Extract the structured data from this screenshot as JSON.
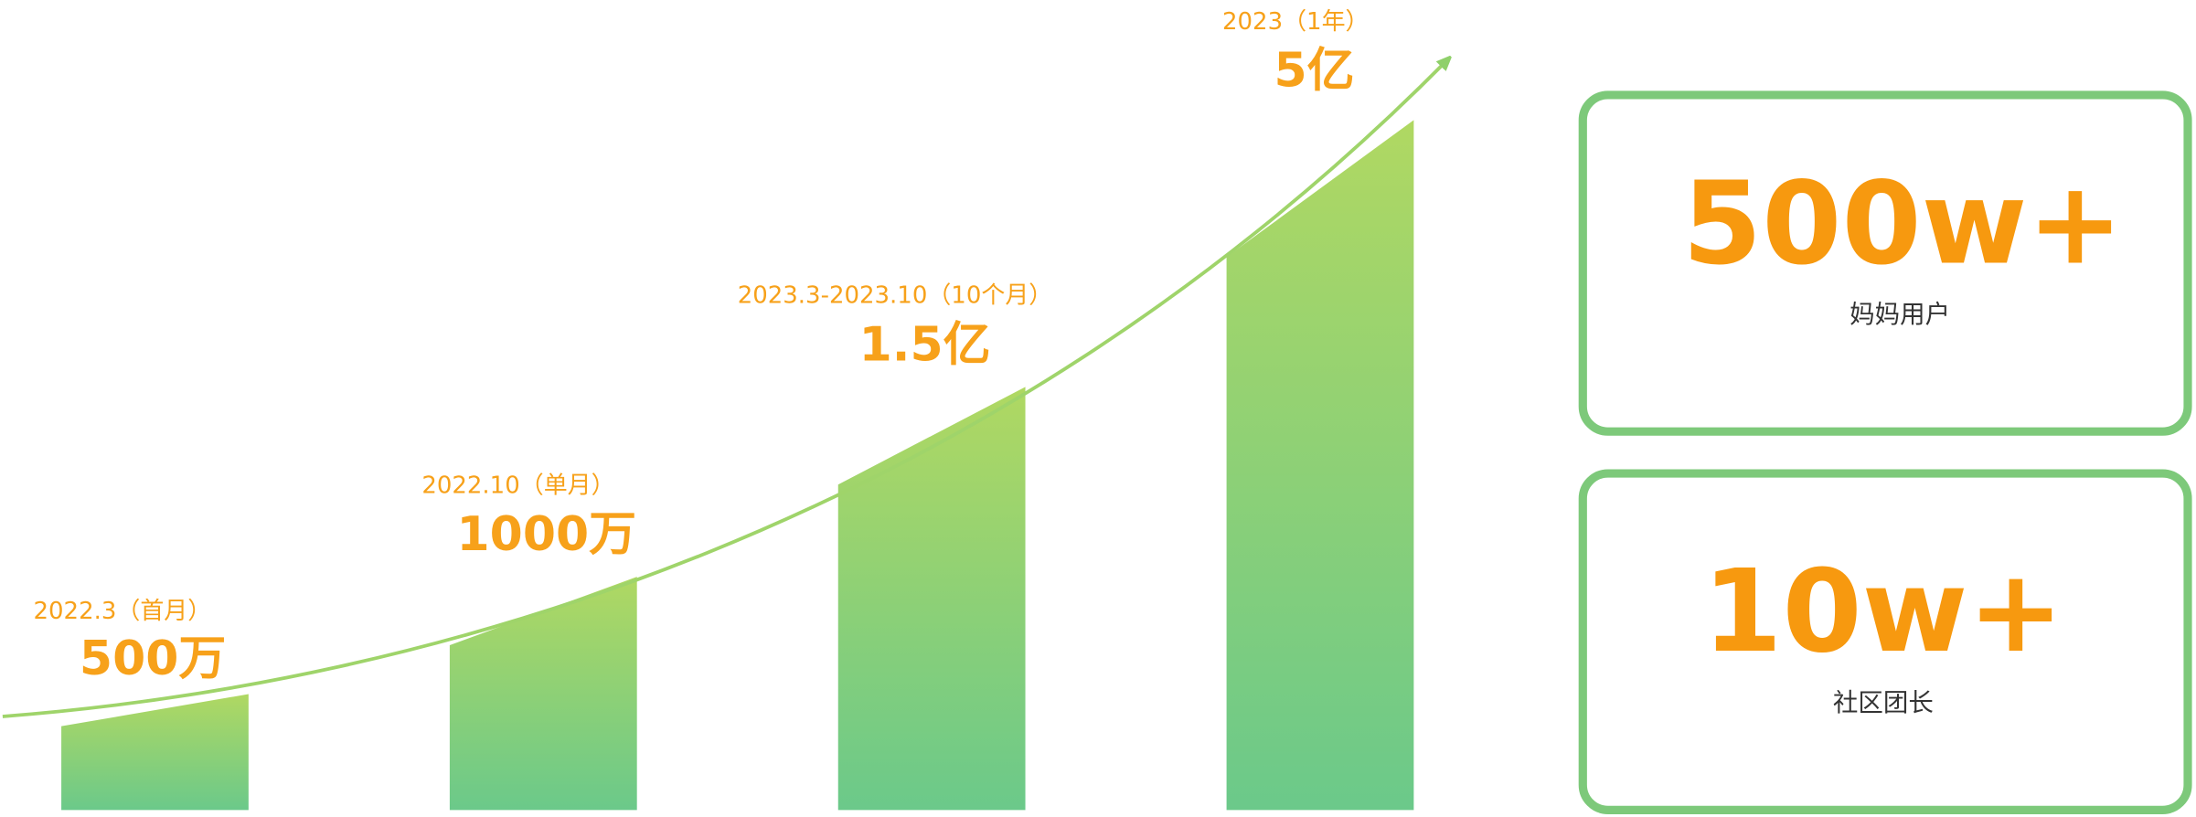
{
  "milestones": [
    {
      "period": "2022.3（首月）",
      "amount": "500万"
    },
    {
      "period": "2022.10（单月）",
      "amount": "1000万"
    },
    {
      "period": "2023.3-2023.10（10个月）",
      "amount": "1.5亿"
    },
    {
      "period": "2023（1年）",
      "amount": "5亿"
    }
  ],
  "stats": [
    {
      "value": "500w+",
      "label": "妈妈用户"
    },
    {
      "value": "10w+",
      "label": "社区团长"
    }
  ]
}
